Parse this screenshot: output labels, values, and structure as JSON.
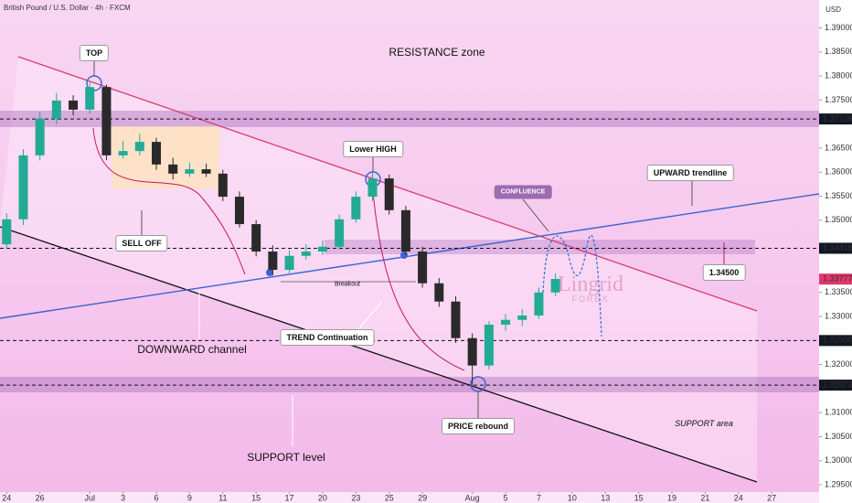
{
  "header": {
    "symbol": "British Pound / U.S. Dollar · 4h · FXCM",
    "currency": "USD"
  },
  "chart_data": {
    "type": "candlestick",
    "xlim": [
      -0.4,
      48.85
    ],
    "xticks": [
      {
        "value": 0,
        "label": "24"
      },
      {
        "value": 2,
        "label": "26"
      },
      {
        "value": 5,
        "label": "Jul"
      },
      {
        "value": 7,
        "label": "3"
      },
      {
        "value": 9,
        "label": "6"
      },
      {
        "value": 11,
        "label": "9"
      },
      {
        "value": 13,
        "label": "11"
      },
      {
        "value": 15,
        "label": "15"
      },
      {
        "value": 17,
        "label": "17"
      },
      {
        "value": 19,
        "label": "20"
      },
      {
        "value": 21,
        "label": "23"
      },
      {
        "value": 23,
        "label": "25"
      },
      {
        "value": 25,
        "label": "29"
      },
      {
        "value": 28,
        "label": "Aug"
      },
      {
        "value": 30,
        "label": "5"
      },
      {
        "value": 32,
        "label": "7"
      },
      {
        "value": 34,
        "label": "10"
      },
      {
        "value": 36,
        "label": "13"
      },
      {
        "value": 38,
        "label": "15"
      },
      {
        "value": 40,
        "label": "19"
      },
      {
        "value": 42,
        "label": "21"
      },
      {
        "value": 44,
        "label": "24"
      },
      {
        "value": 46,
        "label": "27"
      }
    ],
    "ylim": [
      1.2935,
      1.3958
    ],
    "yticks": [
      {
        "value": 1.39,
        "label": "1.39000"
      },
      {
        "value": 1.385,
        "label": "1.38500"
      },
      {
        "value": 1.38,
        "label": "1.38000"
      },
      {
        "value": 1.375,
        "label": "1.37500"
      },
      {
        "value": 1.365,
        "label": "1.36500"
      },
      {
        "value": 1.36,
        "label": "1.36000"
      },
      {
        "value": 1.355,
        "label": "1.35500"
      },
      {
        "value": 1.35,
        "label": "1.35000"
      },
      {
        "value": 1.335,
        "label": "1.33500"
      },
      {
        "value": 1.33,
        "label": "1.33000"
      },
      {
        "value": 1.32,
        "label": "1.32000"
      },
      {
        "value": 1.31,
        "label": "1.31000"
      },
      {
        "value": 1.305,
        "label": "1.30500"
      },
      {
        "value": 1.3,
        "label": "1.30000"
      },
      {
        "value": 1.295,
        "label": "1.29500"
      }
    ],
    "x": [
      0,
      1,
      2,
      3,
      4,
      5,
      6,
      7,
      8,
      9,
      10,
      11,
      12,
      13,
      14,
      15,
      16,
      17,
      18,
      19,
      20,
      21,
      22,
      23,
      24,
      25,
      26,
      27,
      28,
      29,
      30,
      31,
      32,
      33
    ],
    "open": [
      1.345,
      1.3502,
      1.3635,
      1.3711,
      1.3749,
      1.373,
      1.3777,
      1.3635,
      1.3644,
      1.3663,
      1.3616,
      1.3597,
      1.3606,
      1.3597,
      1.3549,
      1.3492,
      1.3435,
      1.3397,
      1.3426,
      1.3435,
      1.3445,
      1.3502,
      1.3549,
      1.3587,
      1.3521,
      1.3435,
      1.3369,
      1.3331,
      1.3255,
      1.3198,
      1.3283,
      1.3293,
      1.3302,
      1.335
    ],
    "high": [
      1.3515,
      1.3648,
      1.3725,
      1.3765,
      1.376,
      1.379,
      1.3782,
      1.3665,
      1.368,
      1.3672,
      1.363,
      1.362,
      1.3618,
      1.3605,
      1.356,
      1.35,
      1.3448,
      1.3438,
      1.345,
      1.3458,
      1.3512,
      1.356,
      1.3598,
      1.3595,
      1.353,
      1.3445,
      1.338,
      1.3342,
      1.3265,
      1.329,
      1.3305,
      1.3315,
      1.336,
      1.339
    ],
    "low": [
      1.344,
      1.349,
      1.3625,
      1.37,
      1.3718,
      1.3722,
      1.3625,
      1.3628,
      1.3635,
      1.3605,
      1.3585,
      1.359,
      1.359,
      1.354,
      1.3485,
      1.3425,
      1.3385,
      1.339,
      1.3418,
      1.3428,
      1.344,
      1.3495,
      1.354,
      1.3512,
      1.3428,
      1.336,
      1.332,
      1.3245,
      1.3158,
      1.319,
      1.327,
      1.328,
      1.3295,
      1.3342
    ],
    "close": [
      1.3502,
      1.3635,
      1.3711,
      1.3749,
      1.373,
      1.3777,
      1.3635,
      1.3644,
      1.3663,
      1.3616,
      1.3597,
      1.3606,
      1.3597,
      1.3549,
      1.3492,
      1.3435,
      1.3397,
      1.3426,
      1.3435,
      1.3445,
      1.3502,
      1.3549,
      1.3587,
      1.3521,
      1.3435,
      1.3369,
      1.3331,
      1.3255,
      1.3198,
      1.3283,
      1.3293,
      1.3302,
      1.335,
      1.3378
    ],
    "up_color": "#22ab94",
    "down_color": "#2a2a2a",
    "price_levels": [
      {
        "value": 1.37106,
        "label": "1.37106"
      },
      {
        "value": 1.34418,
        "label": "1.34418"
      },
      {
        "value": 1.325,
        "label": "1.32500"
      },
      {
        "value": 1.31573,
        "label": "1.31573"
      }
    ],
    "current_price": {
      "value": 1.33777,
      "label": "1.33777"
    },
    "annotations": [
      "RESISTANCE zone",
      "TOP",
      "SELL OFF",
      "Lower HIGH",
      "CONFLUENCE",
      "UPWARD trendline",
      "1.34500",
      "Breakout",
      "DOWNWARD channel",
      "TREND Continuation",
      "PRICE rebound",
      "SUPPORT area",
      "SUPPORT level"
    ]
  },
  "watermark": {
    "brand": "Lingrid",
    "sub": "FOREX"
  }
}
